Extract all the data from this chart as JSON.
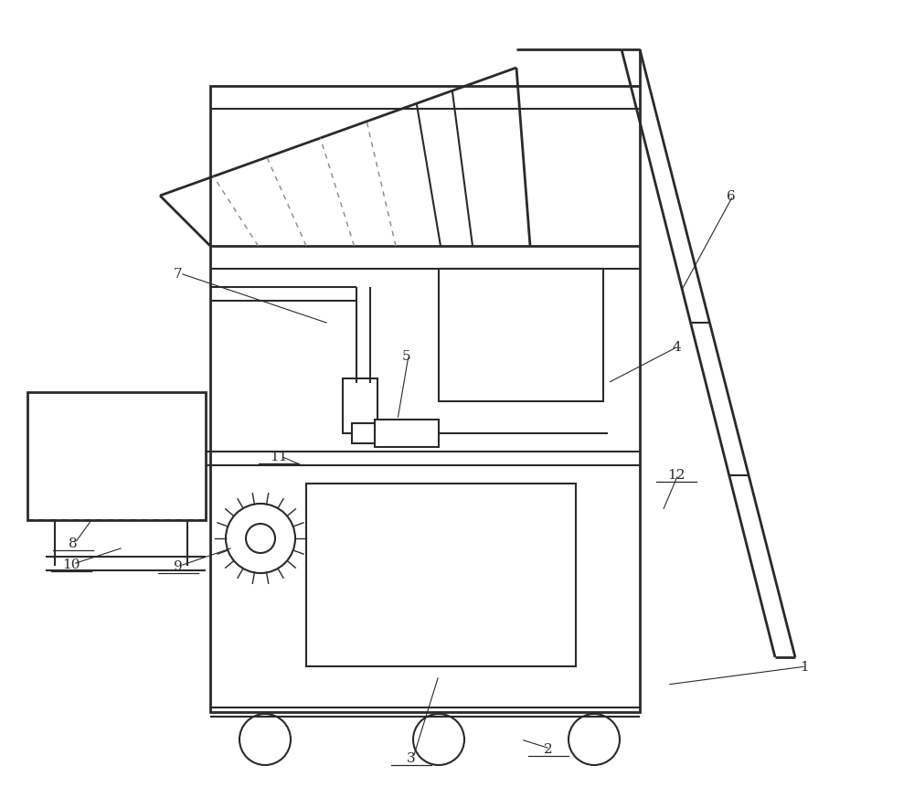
{
  "bg_color": "#ffffff",
  "line_color": "#2a2a2a",
  "lw_thick": 2.0,
  "lw_med": 1.5,
  "lw_thin": 1.0,
  "label_fs": 11,
  "label_color": "#2a2a2a"
}
